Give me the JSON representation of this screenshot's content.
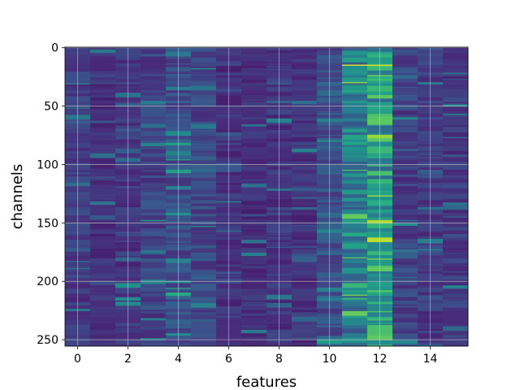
{
  "chart_data": {
    "type": "heatmap",
    "title": "",
    "xlabel": "features",
    "ylabel": "channels",
    "x_ticks": [
      0,
      2,
      4,
      6,
      8,
      10,
      12,
      14
    ],
    "y_ticks": [
      0,
      50,
      100,
      150,
      200,
      250
    ],
    "xlim": [
      -0.5,
      15.5
    ],
    "ylim": [
      255.5,
      -0.5
    ],
    "n_features": 16,
    "n_channels": 256,
    "colormap": "viridis",
    "grid": true,
    "feature_column_mean_intensity": [
      0.18,
      0.14,
      0.16,
      0.2,
      0.24,
      0.22,
      0.15,
      0.14,
      0.16,
      0.15,
      0.26,
      0.42,
      0.55,
      0.2,
      0.18,
      0.17
    ],
    "highlight_cells": [
      {
        "channel": 15,
        "feature": 11,
        "value": 0.95
      },
      {
        "channel": 15,
        "feature": 12,
        "value": 0.95
      },
      {
        "channel": 30,
        "feature": 11,
        "value": 0.85
      },
      {
        "channel": 24,
        "feature": 12,
        "value": 0.8
      },
      {
        "channel": 105,
        "feature": 11,
        "value": 0.7
      },
      {
        "channel": 127,
        "feature": 12,
        "value": 0.85
      },
      {
        "channel": 180,
        "feature": 11,
        "value": 0.75
      },
      {
        "channel": 181,
        "feature": 12,
        "value": 0.8
      },
      {
        "channel": 212,
        "feature": 11,
        "value": 0.8
      },
      {
        "channel": 215,
        "feature": 11,
        "value": 0.7
      },
      {
        "channel": 66,
        "feature": 12,
        "value": 0.7
      },
      {
        "channel": 236,
        "feature": 12,
        "value": 0.6
      }
    ]
  }
}
